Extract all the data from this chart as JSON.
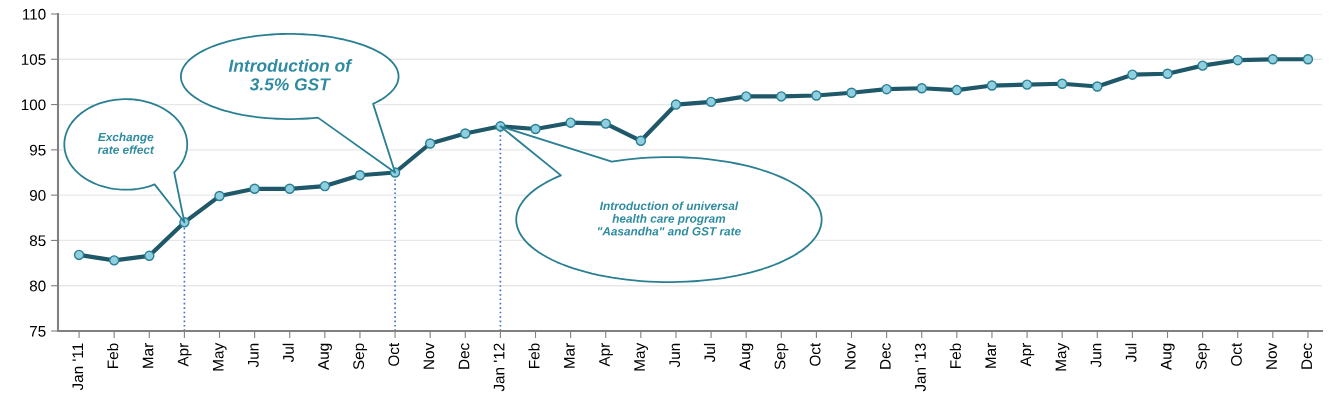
{
  "chart_data": {
    "type": "line",
    "categories": [
      "Jan '11",
      "Feb",
      "Mar",
      "Apr",
      "May",
      "Jun",
      "Jul",
      "Aug",
      "Sep",
      "Oct",
      "Nov",
      "Dec",
      "Jan '12",
      "Feb",
      "Mar",
      "Apr",
      "May",
      "Jun",
      "Jul",
      "Aug",
      "Sep",
      "Oct",
      "Nov",
      "Dec",
      "Jan '13",
      "Feb",
      "Mar",
      "Apr",
      "May",
      "Jun",
      "Jul",
      "Aug",
      "Sep",
      "Oct",
      "Nov",
      "Dec"
    ],
    "series": [
      {
        "color": "#1f5868",
        "values": [
          83.4,
          82.8,
          83.3,
          87.0,
          89.9,
          90.7,
          90.7,
          91.0,
          92.2,
          92.5,
          95.7,
          96.8,
          97.6,
          97.3,
          98.0,
          97.9,
          96.0,
          100.0,
          100.3,
          100.9,
          100.9,
          101.0,
          101.3,
          101.7,
          101.8,
          101.6,
          102.1,
          102.2,
          102.3,
          102.0,
          103.3,
          103.4,
          104.3,
          104.9,
          105.0,
          105.0
        ]
      }
    ],
    "ylim": [
      75,
      110
    ],
    "yticks": [
      75,
      80,
      85,
      90,
      95,
      100,
      105,
      110
    ],
    "grid": "y",
    "marker": "circle",
    "line_style": "solid",
    "legend": false,
    "annotations": [
      "Exchange\nrate effect",
      "Introduction of\n3.5% GST",
      "Introduction of universal\nhealth care program\n\"Aasandha\" and GST rate"
    ],
    "ref_lines": [
      {
        "axis": "x",
        "value": "Apr",
        "color": "#4472c4",
        "line_style": "dotted"
      },
      {
        "axis": "x",
        "value": "Oct",
        "color": "#4472c4",
        "line_style": "dotted"
      },
      {
        "axis": "x",
        "value": "Jan '12",
        "color": "#4472c4",
        "line_style": "dotted"
      }
    ]
  }
}
